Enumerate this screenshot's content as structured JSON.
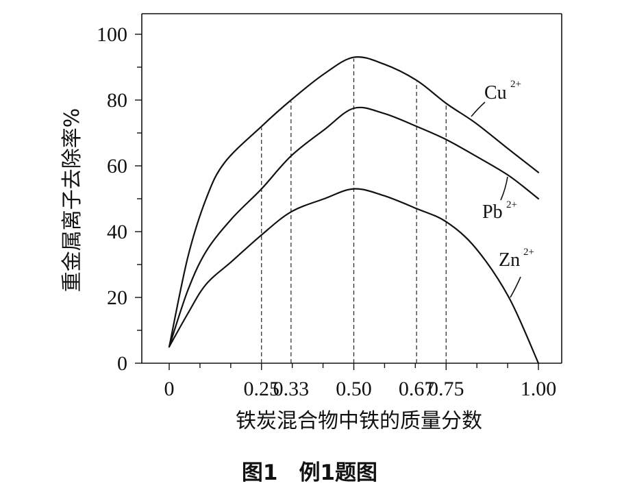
{
  "chart_data": {
    "type": "line",
    "ylabel": "重金属离子去除率%",
    "xlabel": "铁炭混合物中铁的质量分数",
    "ylim": [
      0,
      100
    ],
    "y_ticks": [
      "0",
      "20",
      "40",
      "60",
      "80",
      "100"
    ],
    "x_ticks": [
      "0",
      "0.25",
      "0.33",
      "0.50",
      "0.67",
      "0.75",
      "1.00"
    ],
    "grid": false,
    "series": [
      {
        "name": "Cu",
        "sup": "2+",
        "points": [
          [
            0,
            5
          ],
          [
            0.05,
            32
          ],
          [
            0.1,
            50
          ],
          [
            0.15,
            61
          ],
          [
            0.25,
            72
          ],
          [
            0.33,
            80
          ],
          [
            0.42,
            88
          ],
          [
            0.5,
            93
          ],
          [
            0.58,
            91
          ],
          [
            0.67,
            86
          ],
          [
            0.75,
            79
          ],
          [
            0.83,
            73
          ],
          [
            0.92,
            65
          ],
          [
            1.0,
            58
          ]
        ]
      },
      {
        "name": "Pb",
        "sup": "2+",
        "points": [
          [
            0,
            5
          ],
          [
            0.05,
            22
          ],
          [
            0.1,
            34
          ],
          [
            0.17,
            44
          ],
          [
            0.25,
            53
          ],
          [
            0.33,
            63
          ],
          [
            0.42,
            71
          ],
          [
            0.5,
            77.5
          ],
          [
            0.58,
            76
          ],
          [
            0.67,
            72
          ],
          [
            0.75,
            68
          ],
          [
            0.83,
            63
          ],
          [
            0.92,
            57
          ],
          [
            1.0,
            50
          ]
        ]
      },
      {
        "name": "Zn",
        "sup": "2+",
        "points": [
          [
            0,
            5
          ],
          [
            0.05,
            15
          ],
          [
            0.1,
            24
          ],
          [
            0.17,
            31
          ],
          [
            0.25,
            39
          ],
          [
            0.33,
            46
          ],
          [
            0.42,
            50
          ],
          [
            0.5,
            53
          ],
          [
            0.58,
            51
          ],
          [
            0.67,
            47
          ],
          [
            0.75,
            43
          ],
          [
            0.83,
            35
          ],
          [
            0.92,
            20
          ],
          [
            1.0,
            0
          ]
        ]
      }
    ],
    "guide_x": [
      0.25,
      0.33,
      0.5,
      0.67,
      0.75
    ]
  },
  "caption": "图1　例1题图"
}
